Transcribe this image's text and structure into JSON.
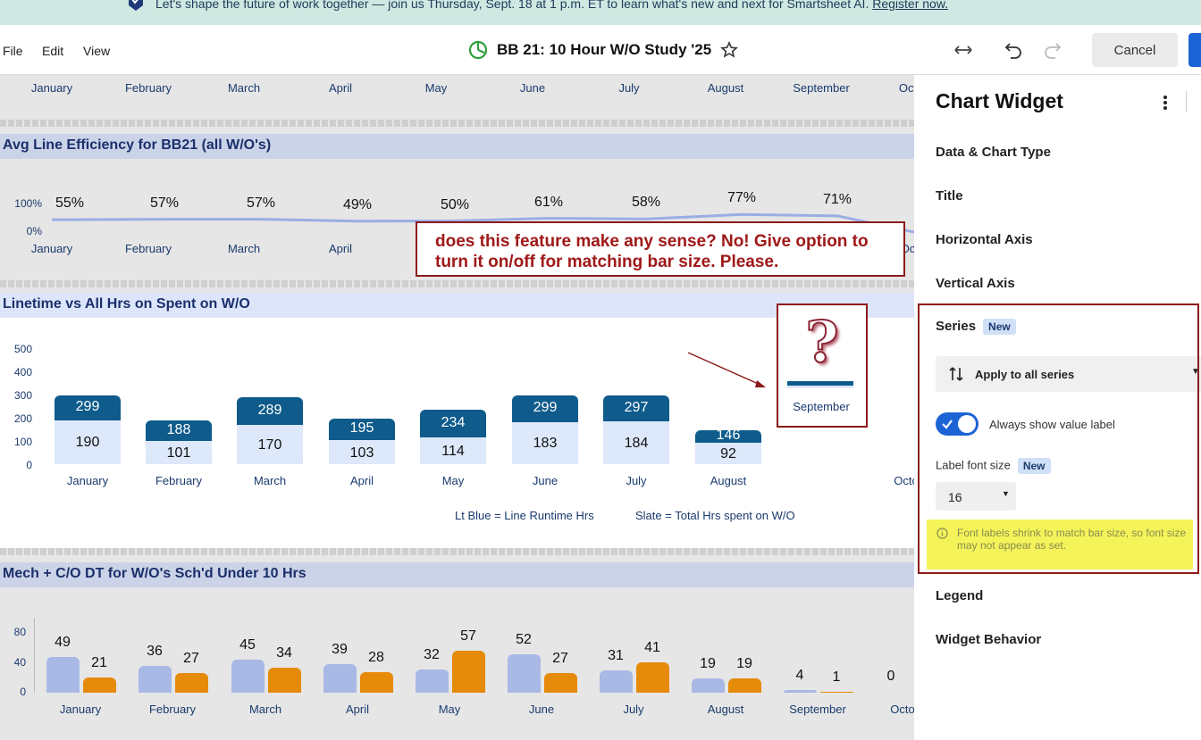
{
  "banner": {
    "text": "Let's shape the future of work together — join us Thursday, Sept. 18 at 1 p.m. ET to learn what's new and next for Smartsheet AI. ",
    "link": "Register now."
  },
  "menu": {
    "file": "File",
    "edit": "Edit",
    "view": "View"
  },
  "sheet_title": "BB 21: 10 Hour W/O Study '25",
  "cancel_label": "Cancel",
  "months_top": [
    "January",
    "February",
    "March",
    "April",
    "May",
    "June",
    "July",
    "August",
    "September",
    "Oct"
  ],
  "widget1": {
    "title": "Avg Line Efficiency for BB21 (all W/O's)",
    "y_ticks": [
      "100%",
      "0%"
    ],
    "values": [
      "55%",
      "57%",
      "57%",
      "49%",
      "50%",
      "61%",
      "58%",
      "77%",
      "71%"
    ],
    "months": [
      "January",
      "February",
      "March",
      "April",
      "May",
      "June",
      "July",
      "August",
      "September",
      "Oc"
    ]
  },
  "widget2": {
    "title": "Linetime vs All Hrs on Spent on W/O",
    "y_ticks": [
      "500",
      "400",
      "300",
      "200",
      "100",
      "0"
    ],
    "months": [
      "January",
      "February",
      "March",
      "April",
      "May",
      "June",
      "July",
      "August",
      "September",
      "Octo"
    ],
    "legend_lt": "Lt Blue =  Line Runtime Hrs",
    "legend_slate": "Slate =  Total Hrs spent on W/O"
  },
  "widget3": {
    "title": "Mech + C/O DT for W/O's Sch'd Under 10 Hrs",
    "y_ticks": [
      "80",
      "40",
      "0"
    ],
    "months": [
      "January",
      "February",
      "March",
      "April",
      "May",
      "June",
      "July",
      "August",
      "September",
      "Octo"
    ],
    "zero_label": "0"
  },
  "annotation": "does this feature make any sense? No! Give option to turn it on/off for matching bar size. Please.",
  "annotation_qmark": "?",
  "panel": {
    "title": "Chart Widget",
    "items": [
      "Data & Chart Type",
      "Title",
      "Horizontal Axis",
      "Vertical Axis"
    ],
    "series_label": "Series",
    "new_badge": "New",
    "apply_all": "Apply to all series",
    "always_show": "Always show value label",
    "font_size_label": "Label font size",
    "font_size_value": "16",
    "warning": "Font labels shrink to match bar size, so font size may not appear as set.",
    "legend": "Legend",
    "widget_behavior": "Widget Behavior"
  },
  "colors": {
    "accent": "#1c63d5",
    "slate": "#0f5b8c",
    "lt_blue": "#dde8fb",
    "series_a": "#a9b9e6",
    "series_b": "#e68a0a",
    "annotation": "#8b1a1a"
  },
  "chart_data": [
    {
      "type": "line",
      "title": "Avg Line Efficiency for BB21 (all W/O's)",
      "categories": [
        "January",
        "February",
        "March",
        "April",
        "May",
        "June",
        "July",
        "August",
        "September"
      ],
      "values": [
        55,
        57,
        57,
        49,
        50,
        61,
        58,
        77,
        71
      ],
      "ylim": [
        0,
        100
      ]
    },
    {
      "type": "bar",
      "title": "Linetime vs All Hrs on Spent on W/O",
      "categories": [
        "January",
        "February",
        "March",
        "April",
        "May",
        "June",
        "July",
        "August",
        "September"
      ],
      "series": [
        {
          "name": "Line Runtime Hrs",
          "values": [
            190,
            101,
            170,
            103,
            114,
            183,
            184,
            92,
            0
          ]
        },
        {
          "name": "Total Hrs spent on W/O",
          "values": [
            299,
            188,
            289,
            195,
            234,
            299,
            297,
            146,
            4
          ]
        }
      ],
      "ylim": [
        0,
        500
      ]
    },
    {
      "type": "bar",
      "title": "Mech + C/O DT for W/O's Sch'd Under 10 Hrs",
      "categories": [
        "January",
        "February",
        "March",
        "April",
        "May",
        "June",
        "July",
        "August",
        "September",
        "Octo"
      ],
      "series": [
        {
          "values": [
            49,
            36,
            45,
            39,
            32,
            52,
            31,
            19,
            4,
            0
          ]
        },
        {
          "values": [
            21,
            27,
            34,
            28,
            57,
            27,
            41,
            19,
            1,
            0
          ]
        }
      ],
      "ylim": [
        0,
        80
      ]
    }
  ]
}
